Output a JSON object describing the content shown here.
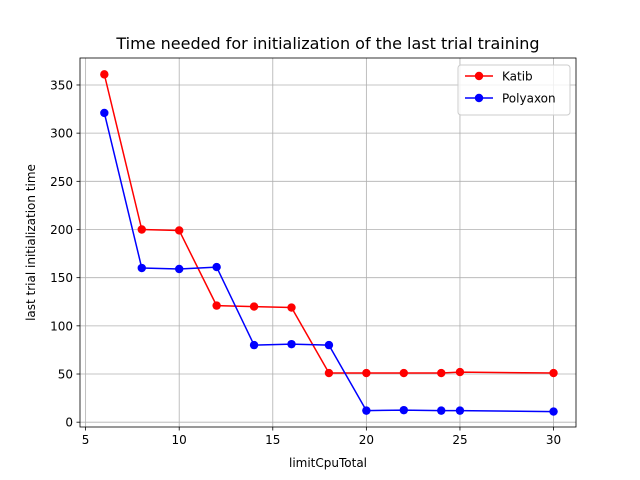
{
  "chart_data": {
    "type": "line",
    "title": "Time needed for initialization of the last trial training",
    "xlabel": "limitCpuTotal",
    "ylabel": "last trial initialization time",
    "xlim": [
      4.7,
      31.2
    ],
    "ylim": [
      -5,
      378
    ],
    "xticks": [
      5,
      10,
      15,
      20,
      25,
      30
    ],
    "yticks": [
      0,
      50,
      100,
      150,
      200,
      250,
      300,
      350
    ],
    "grid": true,
    "legend_position": "top-right",
    "x": [
      6,
      8,
      10,
      12,
      14,
      16,
      18,
      20,
      22,
      24,
      25,
      30
    ],
    "series": [
      {
        "name": "Katib",
        "color": "#ff0000",
        "values": [
          361,
          200,
          199,
          121,
          120,
          119,
          51,
          51,
          51,
          51,
          52,
          51
        ]
      },
      {
        "name": "Polyaxon",
        "color": "#0000ff",
        "values": [
          321,
          160,
          159,
          161,
          80,
          81,
          80,
          12,
          12.5,
          12,
          12,
          11
        ]
      }
    ]
  }
}
